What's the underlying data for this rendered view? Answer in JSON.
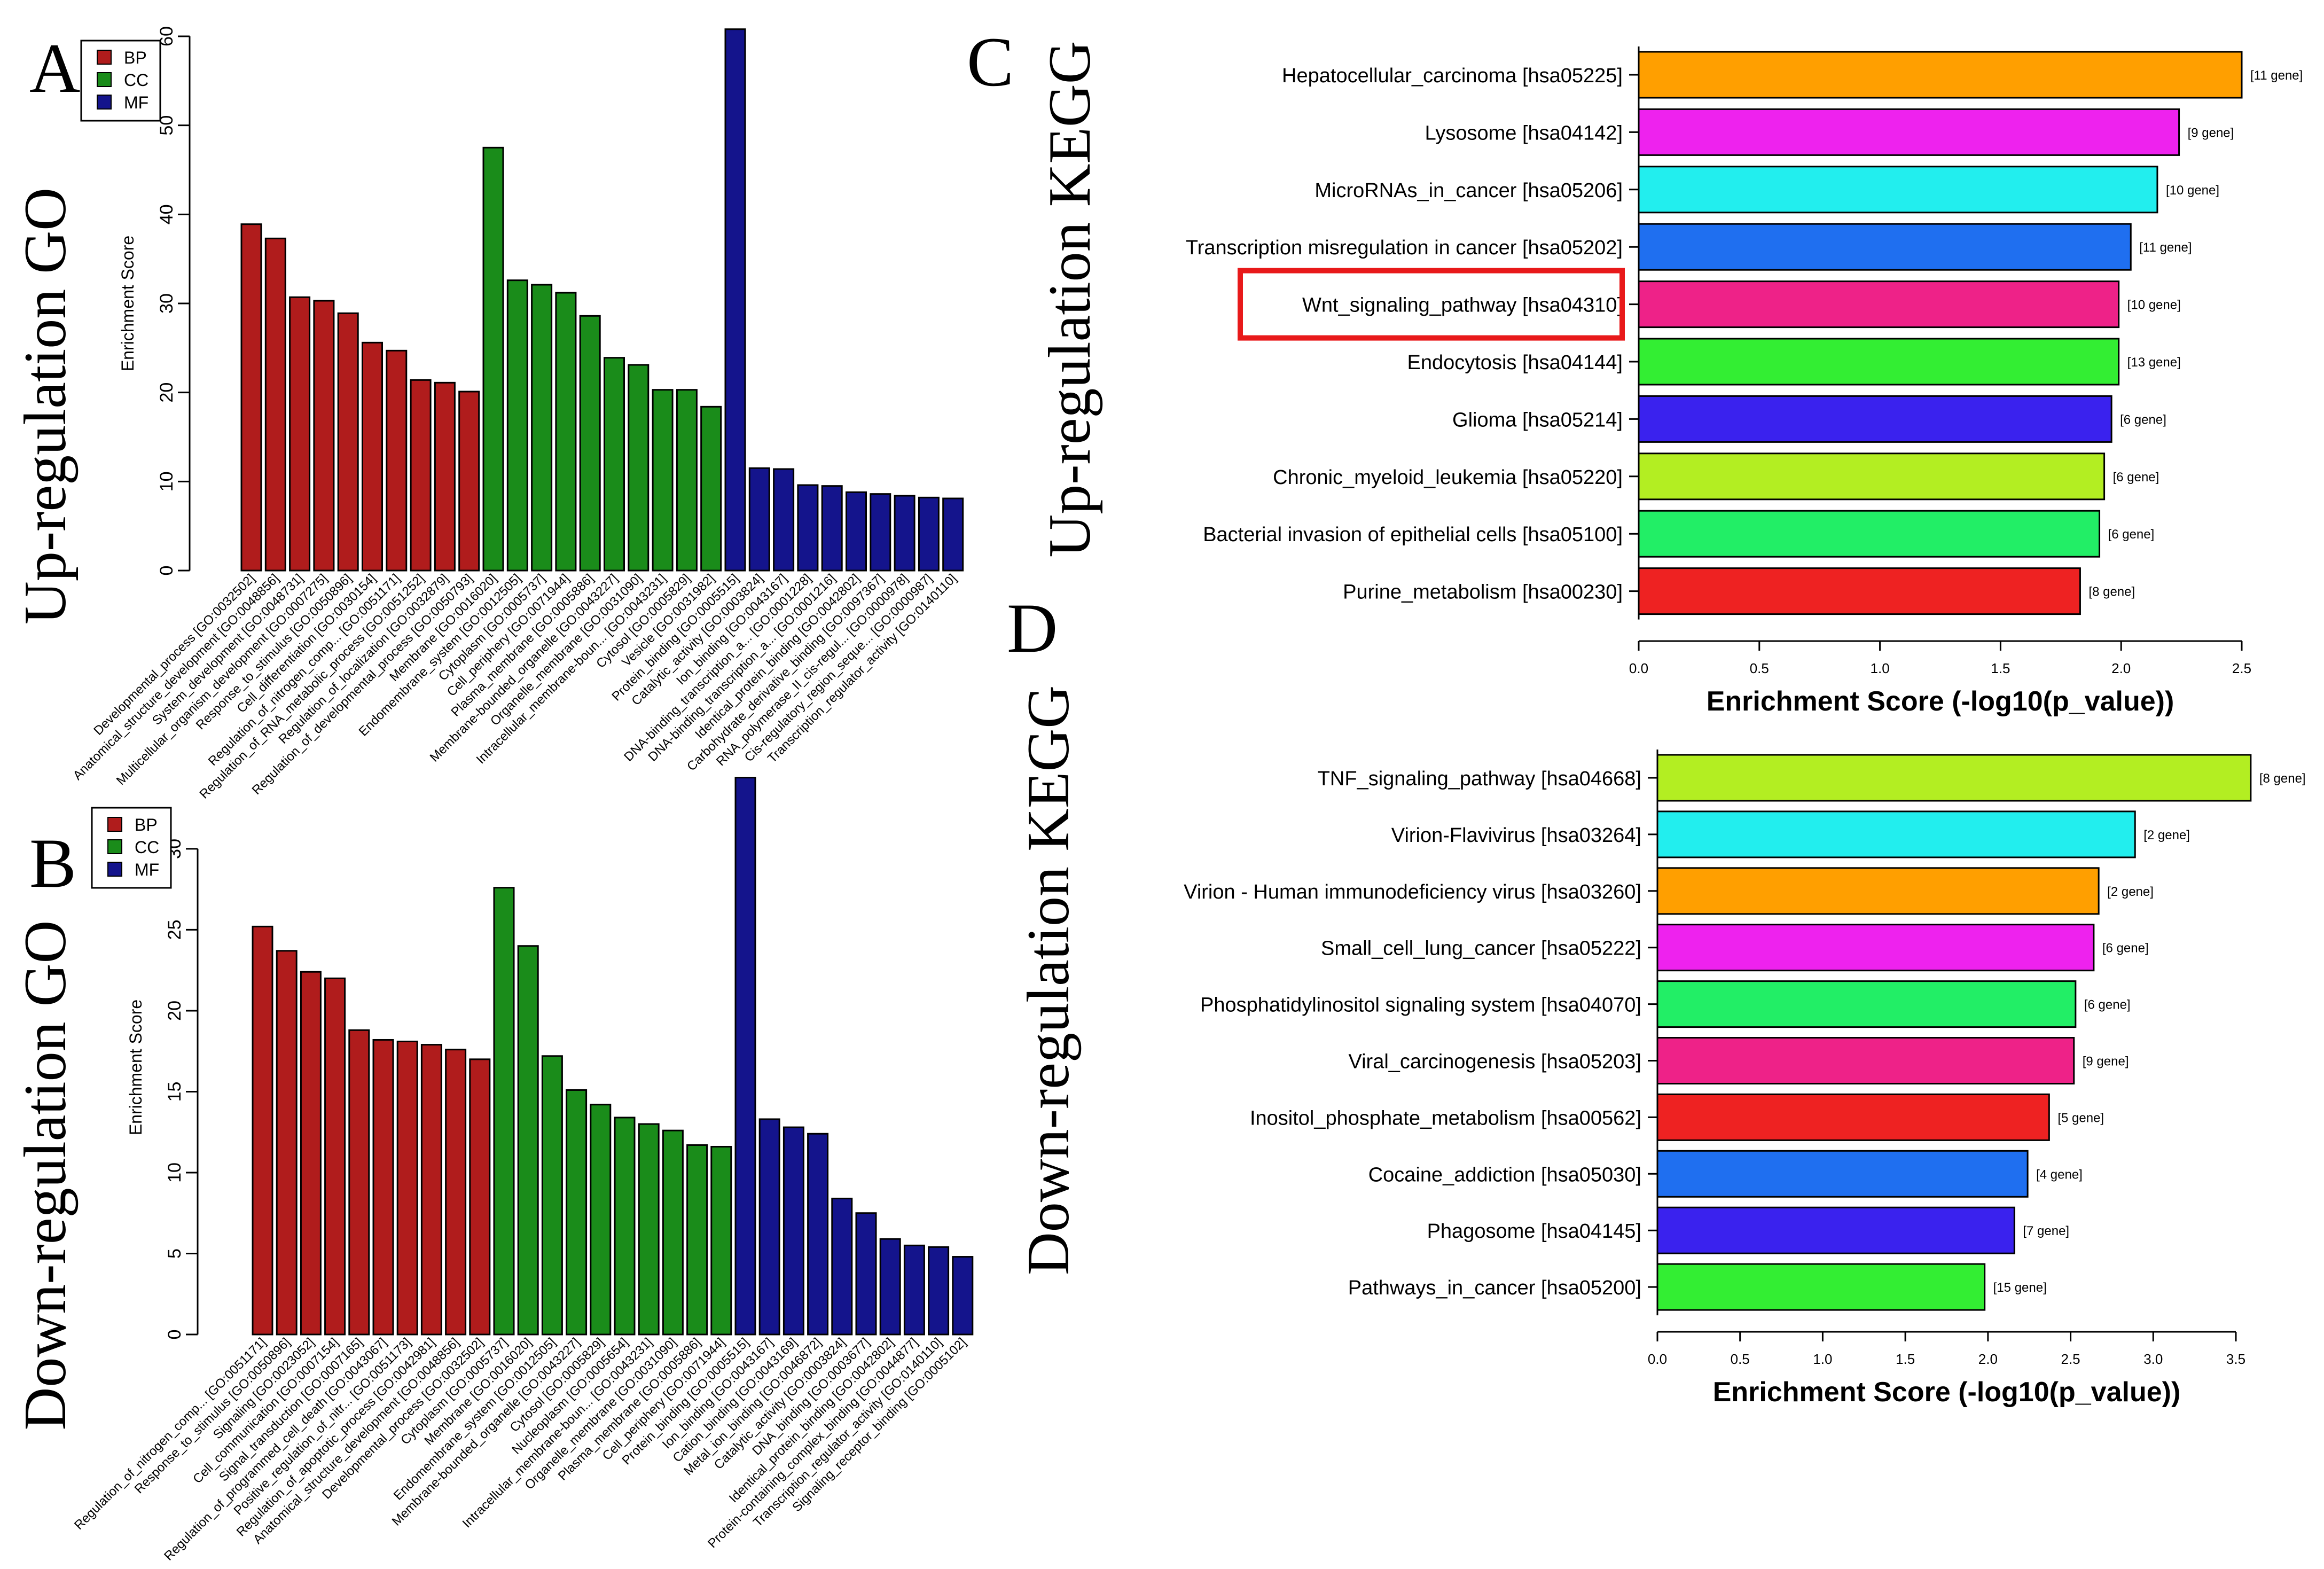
{
  "panels": {
    "A": {
      "letter": "A",
      "side_title": "Up-regulation GO"
    },
    "B": {
      "letter": "B",
      "side_title": "Down-regulation GO"
    },
    "C": {
      "letter": "C",
      "side_title": "Up-regulation KEGG"
    },
    "D": {
      "letter": "D",
      "side_title": "Down-regulation KEGG"
    }
  },
  "colors": {
    "BP": "#b01c1c",
    "CC": "#1a8c1a",
    "MF": "#14148c",
    "highlight_box": "#e8191a"
  },
  "chart_data": [
    {
      "id": "A",
      "type": "bar",
      "ylabel": "Enrichment Score",
      "ylim": [
        0,
        60
      ],
      "yticks": [
        0,
        10,
        20,
        30,
        40,
        50,
        60
      ],
      "legend": {
        "placement": "top-left",
        "entries": [
          "BP",
          "CC",
          "MF"
        ]
      },
      "categories": [
        "Developmental_process [GO:0032502]",
        "Anatomical_structure_development [GO:0048856]",
        "System_development [GO:0048731]",
        "Multicellular_organism_development [GO:0007275]",
        "Response_to_stimulus [GO:0050896]",
        "Cell_differentiation [GO:0030154]",
        "Regulation_of_nitrogen_comp... [GO:0051171]",
        "Regulation_of_RNA_metabolic_process [GO:0051252]",
        "Regulation_of_localization [GO:0032879]",
        "Regulation_of_developmental_process [GO:0050793]",
        "Membrane [GO:0016020]",
        "Endomembrane_system [GO:0012505]",
        "Cytoplasm [GO:0005737]",
        "Cell_periphery [GO:0071944]",
        "Plasma_membrane [GO:0005886]",
        "Membrane-bounded_organelle [GO:0043227]",
        "Organelle_membrane [GO:0031090]",
        "Intracellular_membrane-boun... [GO:0043231]",
        "Cytosol [GO:0005829]",
        "Vesicle [GO:0031982]",
        "Protein_binding [GO:0005515]",
        "Catalytic_activity [GO:0003824]",
        "Ion_binding [GO:0043167]",
        "DNA-binding_transcription_a... [GO:0001228]",
        "DNA-binding_transcription_a... [GO:0001216]",
        "Identical_protein_binding [GO:0042802]",
        "Carbohydrate_derivative_binding [GO:0097367]",
        "RNA_polymerase_II_cis-regul... [GO:0000978]",
        "Cis-regulatory_region_seque... [GO:0000987]",
        "Transcription_regulator_activity [GO:0140110]"
      ],
      "groups": [
        "BP",
        "BP",
        "BP",
        "BP",
        "BP",
        "BP",
        "BP",
        "BP",
        "BP",
        "BP",
        "CC",
        "CC",
        "CC",
        "CC",
        "CC",
        "CC",
        "CC",
        "CC",
        "CC",
        "CC",
        "MF",
        "MF",
        "MF",
        "MF",
        "MF",
        "MF",
        "MF",
        "MF",
        "MF",
        "MF"
      ],
      "values": [
        38.9,
        37.3,
        30.7,
        30.3,
        28.9,
        25.6,
        24.7,
        21.4,
        21.1,
        20.1,
        47.5,
        32.6,
        32.1,
        31.2,
        28.6,
        23.9,
        23.1,
        20.3,
        20.3,
        18.4,
        60.8,
        11.5,
        11.4,
        9.6,
        9.5,
        8.8,
        8.6,
        8.4,
        8.2,
        8.1
      ]
    },
    {
      "id": "B",
      "type": "bar",
      "ylabel": "Enrichment Score",
      "ylim": [
        0,
        33
      ],
      "yticks": [
        0,
        5,
        10,
        15,
        20,
        25,
        30
      ],
      "legend": {
        "placement": "top-left",
        "entries": [
          "BP",
          "CC",
          "MF"
        ]
      },
      "categories": [
        "Regulation_of_nitrogen_comp... [GO:0051171]",
        "Response_to_stimulus [GO:0050896]",
        "Signaling [GO:0023052]",
        "Cell_communication [GO:0007154]",
        "Signal_transduction [GO:0007165]",
        "Regulation_of_programmed_cell_death [GO:0043067]",
        "Positive_regulation_of_nitr... [GO:0051173]",
        "Regulation_of_apoptotic_process [GO:0042981]",
        "Anatomical_structure_development [GO:0048856]",
        "Developmental_process [GO:0032502]",
        "Cytoplasm [GO:0005737]",
        "Membrane [GO:0016020]",
        "Endomembrane_system [GO:0012505]",
        "Membrane-bounded_organelle [GO:0043227]",
        "Cytosol [GO:0005829]",
        "Nucleoplasm [GO:0005654]",
        "Intracellular_membrane-boun... [GO:0043231]",
        "Organelle_membrane [GO:0031090]",
        "Plasma_membrane [GO:0005886]",
        "Cell_periphery [GO:0071944]",
        "Protein_binding [GO:0005515]",
        "Ion_binding [GO:0043167]",
        "Cation_binding [GO:0043169]",
        "Metal_ion_binding [GO:0046872]",
        "Catalytic_activity [GO:0003824]",
        "DNA_binding [GO:0003677]",
        "Identical_protein_binding [GO:0042802]",
        "Protein-containing_complex_binding [GO:0044877]",
        "Transcription_regulator_activity [GO:0140110]",
        "Signaling_receptor_binding [GO:0005102]"
      ],
      "groups": [
        "BP",
        "BP",
        "BP",
        "BP",
        "BP",
        "BP",
        "BP",
        "BP",
        "BP",
        "BP",
        "CC",
        "CC",
        "CC",
        "CC",
        "CC",
        "CC",
        "CC",
        "CC",
        "CC",
        "CC",
        "MF",
        "MF",
        "MF",
        "MF",
        "MF",
        "MF",
        "MF",
        "MF",
        "MF",
        "MF"
      ],
      "values": [
        25.2,
        23.7,
        22.4,
        22.0,
        18.8,
        18.2,
        18.1,
        17.9,
        17.6,
        17.0,
        27.6,
        24.0,
        17.2,
        15.1,
        14.2,
        13.4,
        13.0,
        12.6,
        11.7,
        11.6,
        34.4,
        13.3,
        12.8,
        12.4,
        8.4,
        7.5,
        5.9,
        5.5,
        5.4,
        4.8
      ]
    },
    {
      "id": "C",
      "type": "bar",
      "orientation": "horizontal",
      "xlabel": "Enrichment Score (-log10(p_value))",
      "xlim": [
        0,
        2.5
      ],
      "xticks": [
        "0.0",
        "0.5",
        "1.0",
        "1.5",
        "2.0",
        "2.5"
      ],
      "categories": [
        "Hepatocellular_carcinoma [hsa05225]",
        "Lysosome [hsa04142]",
        "MicroRNAs_in_cancer [hsa05206]",
        "Transcription misregulation in cancer [hsa05202]",
        "Wnt_signaling_pathway [hsa04310]",
        "Endocytosis [hsa04144]",
        "Glioma [hsa05214]",
        "Chronic_myeloid_leukemia [hsa05220]",
        "Bacterial invasion of epithelial cells [hsa05100]",
        "Purine_metabolism [hsa00230]"
      ],
      "values": [
        2.5,
        2.24,
        2.15,
        2.04,
        1.99,
        1.99,
        1.96,
        1.93,
        1.91,
        1.83
      ],
      "data_labels": [
        "[11 gene]",
        "[9 gene]",
        "[10 gene]",
        "[11 gene]",
        "[10 gene]",
        "[13 gene]",
        "[6 gene]",
        "[6 gene]",
        "[6 gene]",
        "[8 gene]"
      ],
      "bar_colors": [
        "#ff9f00",
        "#ee22ee",
        "#22eeee",
        "#1f6ff0",
        "#ee2288",
        "#33ee33",
        "#3a22ee",
        "#b3ee22",
        "#22ee66",
        "#ee2222"
      ],
      "highlight_index": 4
    },
    {
      "id": "D",
      "type": "bar",
      "orientation": "horizontal",
      "xlabel": "Enrichment Score (-log10(p_value))",
      "xlim": [
        0,
        3.5
      ],
      "xticks": [
        "0.0",
        "0.5",
        "1.0",
        "1.5",
        "2.0",
        "2.5",
        "3.0",
        "3.5"
      ],
      "categories": [
        "TNF_signaling_pathway [hsa04668]",
        "Virion-Flavivirus [hsa03264]",
        "Virion - Human immunodeficiency virus [hsa03260]",
        "Small_cell_lung_cancer [hsa05222]",
        "Phosphatidylinositol signaling system [hsa04070]",
        "Viral_carcinogenesis [hsa05203]",
        "Inositol_phosphate_metabolism [hsa00562]",
        "Cocaine_addiction [hsa05030]",
        "Phagosome [hsa04145]",
        "Pathways_in_cancer [hsa05200]"
      ],
      "values": [
        3.59,
        2.89,
        2.67,
        2.64,
        2.53,
        2.52,
        2.37,
        2.24,
        2.16,
        1.98
      ],
      "data_labels": [
        "[8 gene]",
        "[2 gene]",
        "[2 gene]",
        "[6 gene]",
        "[6 gene]",
        "[9 gene]",
        "[5 gene]",
        "[4 gene]",
        "[7 gene]",
        "[15 gene]"
      ],
      "bar_colors": [
        "#b3ee22",
        "#22eeee",
        "#ff9f00",
        "#ee22ee",
        "#22ee66",
        "#ee2288",
        "#ee2222",
        "#1f6ff0",
        "#3a22ee",
        "#33ee33"
      ]
    }
  ]
}
